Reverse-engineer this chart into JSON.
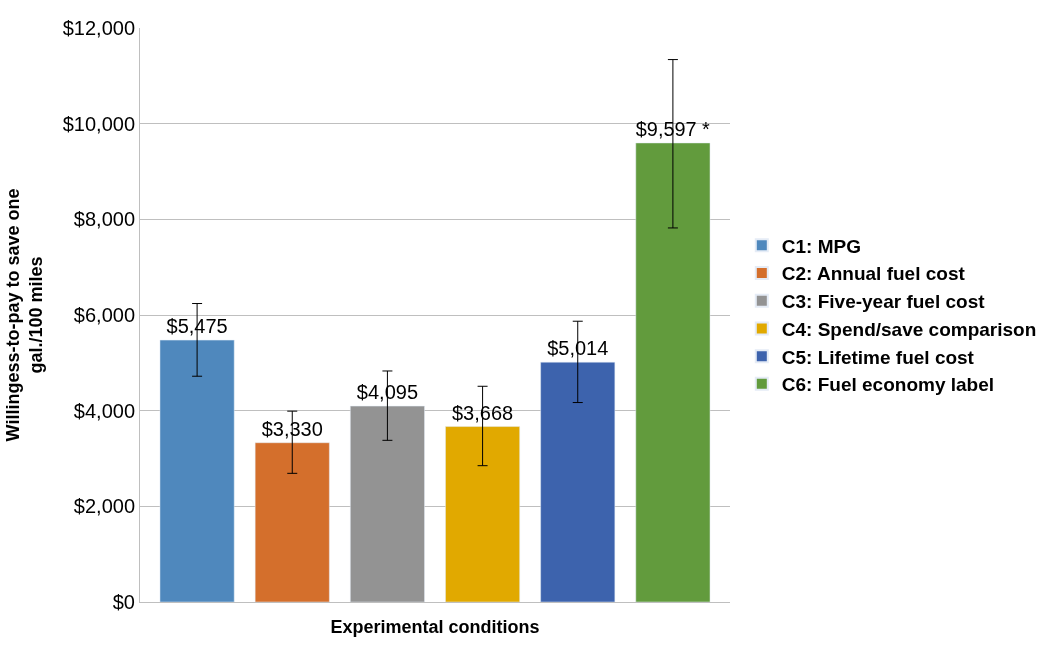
{
  "chart_data": {
    "type": "bar",
    "xlabel": "Experimental conditions",
    "ylabel": "Willingess-to-pay to save one gal./100 miles",
    "categories": [
      null,
      null,
      null,
      null,
      null,
      null
    ],
    "series": [
      {
        "name": "C1: MPG",
        "color": "#4f88bd",
        "values": [
          5475,
          null,
          null,
          null,
          null,
          null
        ],
        "errors": [
          [
            4720,
            6240
          ],
          null,
          null,
          null,
          null,
          null
        ],
        "value_labels": [
          "$5,475",
          null,
          null,
          null,
          null,
          null
        ]
      },
      {
        "name": "C2: Annual fuel cost",
        "color": "#d46f2c",
        "values": [
          null,
          3330,
          null,
          null,
          null,
          null
        ],
        "errors": [
          null,
          [
            2690,
            3990
          ],
          null,
          null,
          null,
          null
        ],
        "value_labels": [
          null,
          "$3,330",
          null,
          null,
          null,
          null
        ]
      },
      {
        "name": "C3: Five-year fuel cost",
        "color": "#939393",
        "values": [
          null,
          null,
          4095,
          null,
          null,
          null
        ],
        "errors": [
          null,
          null,
          [
            3380,
            4830
          ],
          null,
          null,
          null
        ],
        "value_labels": [
          null,
          null,
          "$4,095",
          null,
          null,
          null
        ]
      },
      {
        "name": "C4: Spend/save comparison",
        "color": "#e1a900",
        "values": [
          null,
          null,
          null,
          3668,
          null,
          null
        ],
        "errors": [
          null,
          null,
          null,
          [
            2850,
            4510
          ],
          null,
          null
        ],
        "value_labels": [
          null,
          null,
          null,
          "$3,668",
          null,
          null
        ]
      },
      {
        "name": "C5: Lifetime fuel cost",
        "color": "#3d63ad",
        "values": [
          null,
          null,
          null,
          null,
          5014,
          null
        ],
        "errors": [
          null,
          null,
          null,
          null,
          [
            4170,
            5870
          ],
          null
        ],
        "value_labels": [
          null,
          null,
          null,
          null,
          "$5,014",
          null
        ]
      },
      {
        "name": "C6: Fuel economy label",
        "color": "#629b3d",
        "values": [
          null,
          null,
          null,
          null,
          null,
          9597
        ],
        "errors": [
          null,
          null,
          null,
          null,
          null,
          [
            7820,
            11340
          ]
        ],
        "value_labels": [
          null,
          null,
          null,
          null,
          null,
          "$9,597 *"
        ]
      }
    ],
    "ylim": [
      0,
      12000
    ],
    "yticks": [
      {
        "value": 0,
        "label": "$0"
      },
      {
        "value": 2000,
        "label": "$2,000"
      },
      {
        "value": 4000,
        "label": "$4,000"
      },
      {
        "value": 6000,
        "label": "$6,000"
      },
      {
        "value": 8000,
        "label": "$8,000"
      },
      {
        "value": 10000,
        "label": "$10,000"
      },
      {
        "value": 12000,
        "label": "$12,000"
      }
    ],
    "grid": "y",
    "legend": "right"
  }
}
